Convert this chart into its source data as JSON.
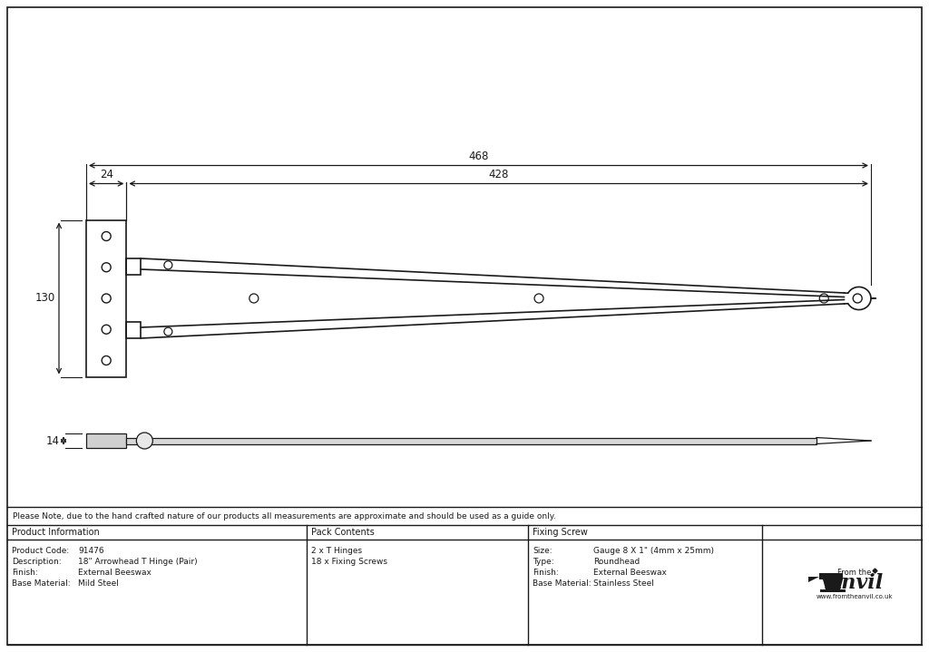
{
  "bg_color": "#ffffff",
  "line_color": "#1a1a1a",
  "dim_color": "#1a1a1a",
  "note": "Please Note, due to the hand crafted nature of our products all measurements are approximate and should be used as a guide only.",
  "product_info_keys": [
    "Product Code:",
    "Description:",
    "Finish:",
    "Base Material:"
  ],
  "product_info_vals": [
    "91476",
    "18\" Arrowhead T Hinge (Pair)",
    "External Beeswax",
    "Mild Steel"
  ],
  "pack_contents_header": "Pack Contents",
  "pack_contents_items": [
    "2 x T Hinges",
    "18 x Fixing Screws"
  ],
  "fixing_screw_header": "Fixing Screw",
  "fixing_screw_keys": [
    "Size:",
    "Type:",
    "Finish:",
    "Base Material:"
  ],
  "fixing_screw_vals": [
    "Gauge 8 X 1\" (4mm x 25mm)",
    "Roundhead",
    "External Beeswax",
    "Stainless Steel"
  ],
  "product_info_header": "Product Information",
  "dim_468": "468",
  "dim_428": "428",
  "dim_24": "24",
  "dim_130": "130",
  "dim_14": "14"
}
